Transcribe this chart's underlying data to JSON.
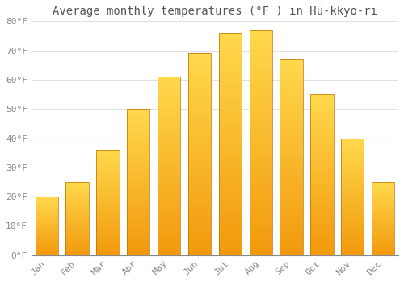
{
  "title": "Average monthly temperatures (°F ) in Hū-kkyo-ri",
  "months": [
    "Jan",
    "Feb",
    "Mar",
    "Apr",
    "May",
    "Jun",
    "Jul",
    "Aug",
    "Sep",
    "Oct",
    "Nov",
    "Dec"
  ],
  "values": [
    20,
    25,
    36,
    50,
    61,
    69,
    76,
    77,
    67,
    55,
    40,
    25
  ],
  "bar_color_face": "#FFAE00",
  "bar_color_edge": "#C87800",
  "ylim": [
    0,
    80
  ],
  "yticks": [
    0,
    10,
    20,
    30,
    40,
    50,
    60,
    70,
    80
  ],
  "ytick_labels": [
    "0°F",
    "10°F",
    "20°F",
    "30°F",
    "40°F",
    "50°F",
    "60°F",
    "70°F",
    "80°F"
  ],
  "background_color": "#FFFFFF",
  "plot_bg_color": "#FFFFFF",
  "grid_color": "#E0E0E0",
  "title_fontsize": 10,
  "tick_fontsize": 8,
  "font_family": "monospace"
}
